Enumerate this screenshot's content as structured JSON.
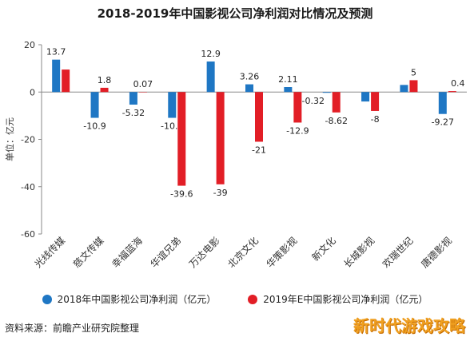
{
  "header": {
    "title": "2018-2019年中国影视公司净利润对比情况及预测"
  },
  "footer": {
    "source": "资料来源：前瞻产业研究院整理",
    "corner_text": "新时代游戏攻略"
  },
  "colors": {
    "series1": "#1f77c4",
    "series2": "#e21e26",
    "axis": "#888888",
    "grid": "#e6e6e6"
  },
  "legend": {
    "series1": "2018年中国影视公司净利润（亿元）",
    "series2": "2019年E中国影视公司净利润（亿元）"
  },
  "chart_data": {
    "type": "bar",
    "title": "2018-2019年中国影视公司净利润对比情况及预测",
    "ylabel": "单位：亿元",
    "ylim": [
      -60,
      20
    ],
    "yticks": [
      20,
      0,
      -20,
      -40,
      -60
    ],
    "grid": false,
    "legend_position": "bottom",
    "categories": [
      "光线传媒",
      "慈文传媒",
      "幸福蓝海",
      "华谊兄弟",
      "万达电影",
      "北京文化",
      "华策影视",
      "新文化",
      "长城影视",
      "欢瑞世纪",
      "唐德影视"
    ],
    "series": [
      {
        "name": "2018年中国影视公司净利润（亿元）",
        "values": [
          13.7,
          -10.9,
          -5.32,
          -10.9,
          12.9,
          3.26,
          2.11,
          -0.32,
          -4,
          3,
          -9.27
        ],
        "labels": [
          "13.7",
          "-10.9",
          "-5.32",
          "-10.9",
          "12.9",
          "3.26",
          "2.11",
          "-0.32",
          "",
          "",
          "-9.27"
        ]
      },
      {
        "name": "2019年E中国影视公司净利润（亿元）",
        "values": [
          9.5,
          1.8,
          0.07,
          -39.6,
          -39,
          -21,
          -12.9,
          -8.62,
          -8,
          5,
          0.4
        ],
        "labels": [
          "",
          "1.8",
          "0.07",
          "-39.6",
          "-39",
          "-21",
          "-12.9",
          "-8.62",
          "-8",
          "5",
          "0.4"
        ]
      }
    ]
  }
}
